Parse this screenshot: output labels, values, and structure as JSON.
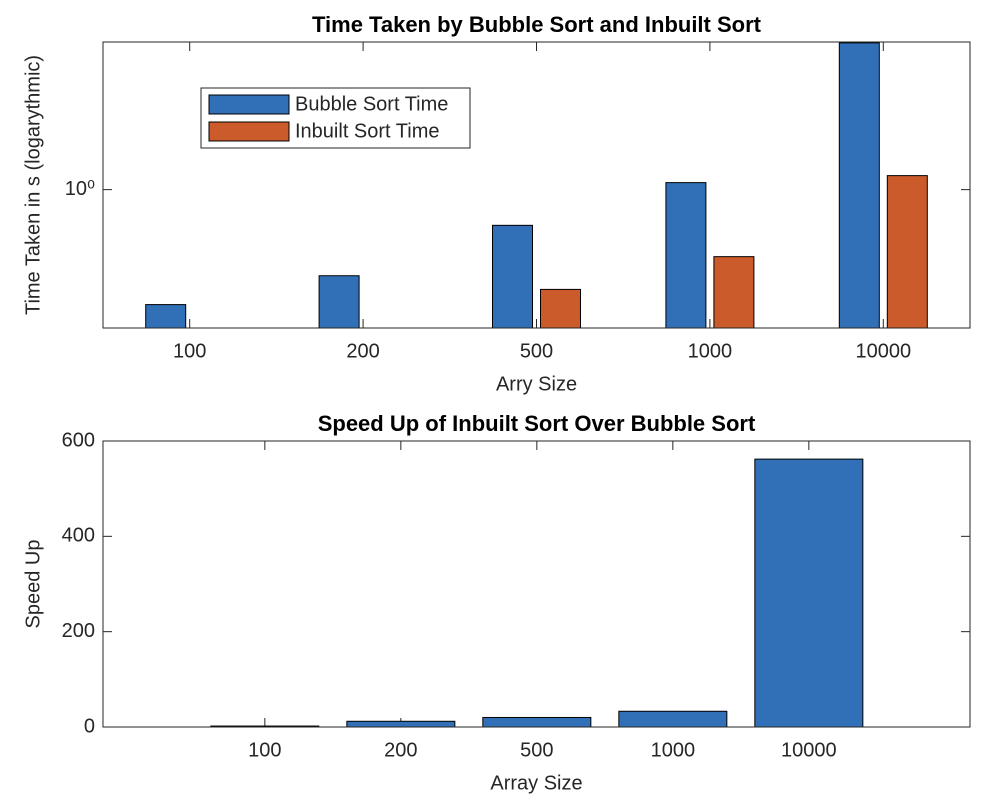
{
  "chart_data": [
    {
      "type": "bar",
      "title": "Time Taken by Bubble Sort and Inbuilt Sort",
      "x_label": "Arry Size",
      "y_label": "Time Taken in s (logarythmic)",
      "categories": [
        "100",
        "200",
        "500",
        "1000",
        "10000"
      ],
      "series": [
        {
          "name": "Bubble Sort Time",
          "color": "#3170b7",
          "values": [
            0.004,
            0.016,
            0.18,
            1.4,
            1150
          ]
        },
        {
          "name": "Inbuilt Sort Time",
          "color": "#cc5b2b",
          "values": [
            0.001,
            0.0013,
            0.0083,
            0.04,
            1.96
          ]
        }
      ],
      "log_scale": true,
      "ylim": [
        0.0013,
        1200
      ],
      "yticks": [
        {
          "value": 1,
          "label": "10⁰"
        }
      ],
      "legend": "northwest"
    },
    {
      "type": "bar",
      "title": "Speed Up of Inbuilt Sort Over Bubble Sort",
      "x_label": "Array Size",
      "y_label": "Speed Up",
      "categories": [
        "100",
        "200",
        "500",
        "1000",
        "10000"
      ],
      "values": [
        2,
        12,
        20,
        33,
        562
      ],
      "color": "#3170b7",
      "ylim": [
        0,
        600
      ],
      "yticks": [
        0,
        200,
        400,
        600
      ]
    }
  ]
}
